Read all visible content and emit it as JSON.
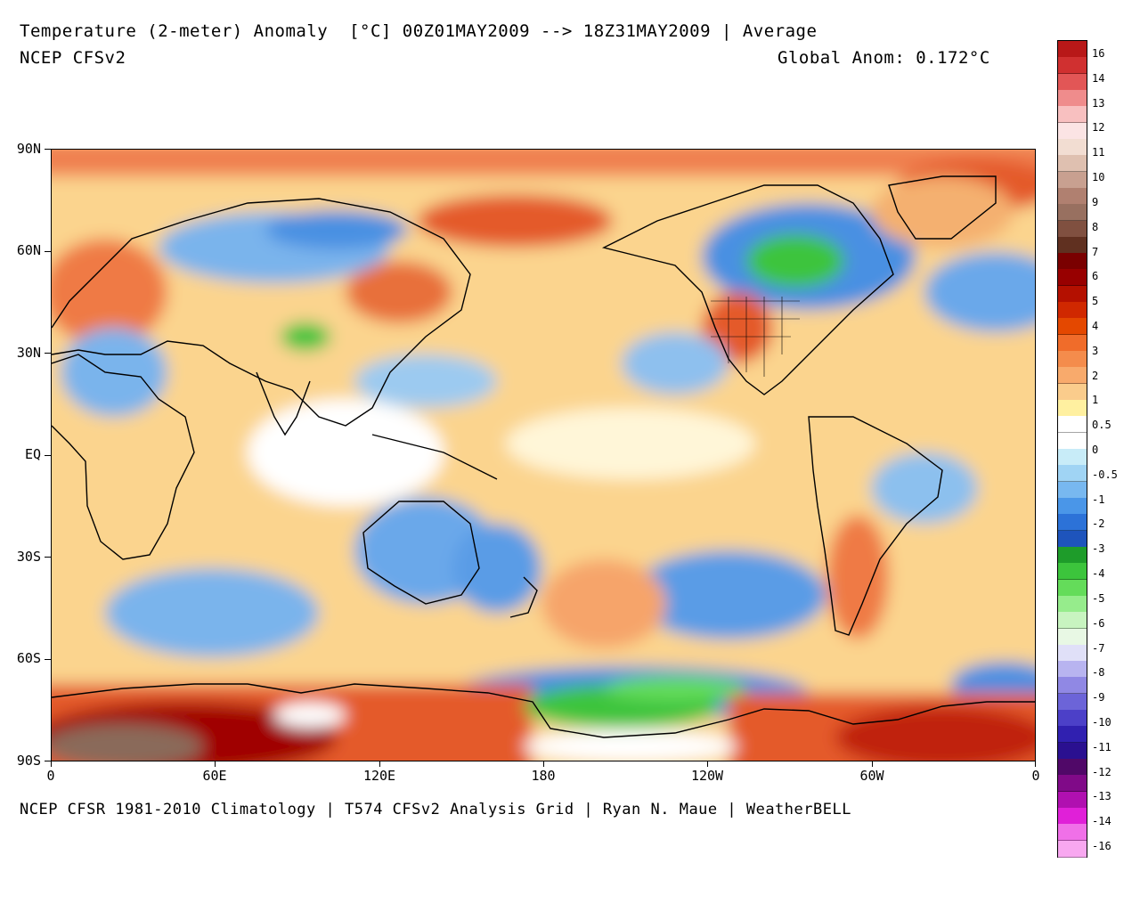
{
  "header": {
    "title": "Temperature (2-meter) Anomaly  [°C] 00Z01MAY2009 --> 18Z31MAY2009 | Average",
    "model": "NCEP CFSv2",
    "global_anom": "Global Anom: 0.172°C"
  },
  "footer": {
    "credit": "NCEP CFSR 1981-2010 Climatology | T574 CFSv2 Analysis Grid | Ryan N. Maue | WeatherBELL"
  },
  "axes": {
    "lat_labels": [
      "90N",
      "60N",
      "30N",
      "EQ",
      "30S",
      "60S",
      "90S"
    ],
    "lon_labels": [
      "0",
      "60E",
      "120E",
      "180",
      "120W",
      "60W",
      "0"
    ]
  },
  "colorbar": {
    "labels": [
      "16",
      "14",
      "13",
      "12",
      "11",
      "10",
      "9",
      "8",
      "7",
      "6",
      "5",
      "4",
      "3",
      "2",
      "1",
      "0.5",
      "0",
      "-0.5",
      "-1",
      "-2",
      "-3",
      "-4",
      "-5",
      "-6",
      "-7",
      "-8",
      "-9",
      "-10",
      "-11",
      "-12",
      "-13",
      "-14",
      "-16"
    ],
    "colors": [
      "#b81818",
      "#d03030",
      "#e25656",
      "#ef8c8c",
      "#f8c0c0",
      "#fbe4e4",
      "#f2ddd2",
      "#dfc0b0",
      "#c8a090",
      "#b08070",
      "#987060",
      "#805040",
      "#603020",
      "#7a0000",
      "#980000",
      "#b41000",
      "#d02800",
      "#e44800",
      "#f06c2a",
      "#f48c4c",
      "#f8aa6c",
      "#facc8c",
      "#fff0a0",
      "#ffffff",
      "#ffffff",
      "#c8ecf8",
      "#a0d4f4",
      "#78b8f0",
      "#4a96e8",
      "#2c72d8",
      "#1e54bc",
      "#1e9c2a",
      "#3cc43c",
      "#64dc5a",
      "#96ec8c",
      "#c8f4c0",
      "#e8f8e4",
      "#e0e0f8",
      "#b8b4f0",
      "#9088e4",
      "#6c64d8",
      "#4c40c8",
      "#3020b0",
      "#2a1090",
      "#500868",
      "#800a88",
      "#b010b0",
      "#e020d8",
      "#f070e8",
      "#f8a8f0"
    ],
    "anomaly_palette": {
      "strong_warm": "#a00000",
      "warm": "#e45a2a",
      "mild_warm": "#f6a46a",
      "slight_warm": "#fbd48e",
      "neutral": "#ffffff",
      "slight_cool": "#a8d8f4",
      "cool": "#4a90e2",
      "strong_cool": "#2a5cc8",
      "very_cold": "#3cc43c",
      "antarctic_extreme": "#8a6a5a"
    }
  }
}
